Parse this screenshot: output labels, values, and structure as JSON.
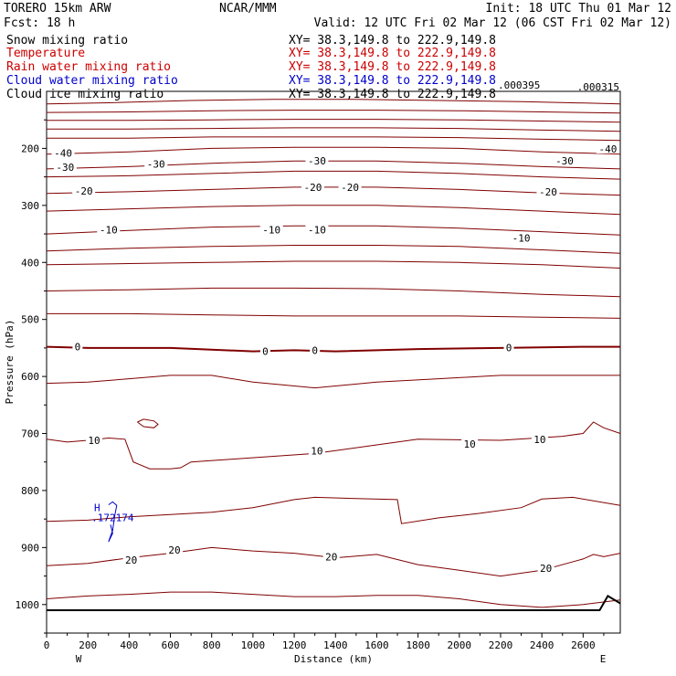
{
  "header": {
    "model": "TORERO  15km ARW",
    "center": "NCAR/MMM",
    "init": "Init: 18 UTC Thu 01 Mar 12",
    "fcst": "Fcst:   18 h",
    "valid": "Valid: 12 UTC Fri 02 Mar 12 (06 CST Fri 02 Mar 12)"
  },
  "fields": [
    {
      "name": "Snow mixing ratio",
      "xy": "",
      "color": "#000000"
    },
    {
      "name": "Temperature",
      "xy": "XY=  38.3,149.8 to 222.9,149.8",
      "color": "#cc0000"
    },
    {
      "name": "Rain water mixing ratio",
      "xy": "XY=  38.3,149.8 to 222.9,149.8",
      "color": "#cc0000"
    },
    {
      "name": "Cloud water mixing ratio",
      "xy": "XY=  38.3,149.8 to 222.9,149.8",
      "color": "#0000cc"
    },
    {
      "name": "Cloud ice mixing ratio",
      "xy": "XY=  38.3,149.8 to 222.9,149.8",
      "color": "#000000"
    }
  ],
  "snow_xy": "XY=  38.3,149.8 to 222.9,149.8",
  "corner_values": [
    ".000395",
    ".000315"
  ],
  "chart_data": {
    "type": "line",
    "subtype": "vertical cross-section contour",
    "xlabel": "Distance (km)",
    "ylabel": "Pressure (hPa)",
    "xlim": [
      0,
      2780
    ],
    "ylim": [
      1050,
      100
    ],
    "x_ticks": [
      0,
      200,
      400,
      600,
      800,
      1000,
      1200,
      1400,
      1600,
      1800,
      2000,
      2200,
      2400,
      2600
    ],
    "y_ticks": [
      200,
      300,
      400,
      500,
      600,
      700,
      800,
      900,
      1000
    ],
    "end_labels": {
      "left": "W",
      "right": "E"
    },
    "contour_color": "#800000",
    "series": [
      {
        "level": 40,
        "x": [
          0,
          300,
          700,
          1100,
          1500,
          1900,
          2300,
          2780
        ],
        "p": [
          122,
          120,
          116,
          114,
          114,
          116,
          118,
          122
        ]
      },
      {
        "level": 40,
        "x": [
          0,
          400,
          800,
          1200,
          1600,
          2000,
          2400,
          2780
        ],
        "p": [
          137,
          136,
          134,
          133,
          133,
          134,
          136,
          138
        ]
      },
      {
        "level": 40,
        "x": [
          0,
          400,
          800,
          1200,
          1600,
          2000,
          2400,
          2780
        ],
        "p": [
          151,
          151,
          150,
          149,
          149,
          150,
          152,
          154
        ]
      },
      {
        "level": 40,
        "x": [
          0,
          400,
          800,
          1200,
          1600,
          2000,
          2400,
          2780
        ],
        "p": [
          166,
          166,
          165,
          164,
          164,
          165,
          168,
          170
        ]
      },
      {
        "level": 40,
        "x": [
          0,
          400,
          800,
          1200,
          1600,
          2000,
          2400,
          2780
        ],
        "p": [
          182,
          182,
          180,
          180,
          180,
          181,
          184,
          186
        ]
      },
      {
        "level": -40,
        "x": [
          0,
          400,
          800,
          1200,
          1600,
          2000,
          2400,
          2780
        ],
        "p": [
          210,
          206,
          200,
          198,
          198,
          200,
          206,
          210
        ]
      },
      {
        "level": -30,
        "x": [
          0,
          400,
          800,
          1200,
          1600,
          2000,
          2400,
          2780
        ],
        "p": [
          236,
          232,
          226,
          222,
          222,
          226,
          232,
          236
        ]
      },
      {
        "level": -30,
        "x": [
          0,
          400,
          800,
          1200,
          1600,
          2000,
          2400,
          2780
        ],
        "p": [
          250,
          248,
          244,
          240,
          240,
          244,
          250,
          254
        ]
      },
      {
        "level": -20,
        "x": [
          0,
          400,
          800,
          1200,
          1600,
          2000,
          2400,
          2780
        ],
        "p": [
          279,
          276,
          272,
          268,
          268,
          272,
          278,
          282
        ]
      },
      {
        "level": -20,
        "x": [
          0,
          400,
          800,
          1200,
          1600,
          2000,
          2400,
          2780
        ],
        "p": [
          310,
          306,
          302,
          300,
          300,
          304,
          310,
          316
        ]
      },
      {
        "level": -10,
        "x": [
          0,
          400,
          800,
          1200,
          1600,
          2000,
          2400,
          2780
        ],
        "p": [
          350,
          344,
          338,
          336,
          336,
          340,
          346,
          352
        ]
      },
      {
        "level": -20,
        "x": [
          0,
          400,
          800,
          1200,
          1600,
          2000,
          2400,
          2780
        ],
        "p": [
          380,
          375,
          372,
          370,
          370,
          372,
          378,
          384
        ]
      },
      {
        "level": -10,
        "x": [
          0,
          400,
          800,
          1200,
          1600,
          2000,
          2400,
          2780
        ],
        "p": [
          404,
          402,
          400,
          398,
          398,
          400,
          404,
          410
        ]
      },
      {
        "level": -10,
        "x": [
          0,
          400,
          800,
          1200,
          1600,
          2000,
          2400,
          2780
        ],
        "p": [
          450,
          448,
          445,
          445,
          446,
          450,
          456,
          460
        ]
      },
      {
        "level": -10,
        "x": [
          0,
          400,
          800,
          1200,
          1600,
          2000,
          2400,
          2780
        ],
        "p": [
          490,
          490,
          492,
          494,
          494,
          494,
          496,
          498
        ]
      },
      {
        "level": 0,
        "x": [
          0,
          200,
          600,
          1000,
          1200,
          1400,
          1800,
          2200,
          2600,
          2780
        ],
        "p": [
          548,
          550,
          550,
          556,
          554,
          556,
          552,
          550,
          548,
          548
        ]
      },
      {
        "level": 10,
        "x": [
          0,
          200,
          400,
          600,
          800,
          1000,
          1300,
          1600,
          1900,
          2200,
          2500,
          2780
        ],
        "p": [
          612,
          610,
          604,
          598,
          598,
          610,
          620,
          610,
          604,
          598,
          598,
          598
        ]
      },
      {
        "level": 10,
        "x": [
          0,
          100,
          200,
          300,
          380,
          420,
          500,
          600,
          650,
          700,
          900,
          1300,
          1600,
          1800,
          2200,
          2500,
          2600,
          2650,
          2700,
          2780
        ],
        "p": [
          710,
          715,
          712,
          708,
          710,
          750,
          762,
          762,
          760,
          750,
          745,
          735,
          720,
          710,
          712,
          705,
          700,
          680,
          690,
          700
        ]
      },
      {
        "level": 10,
        "x": [
          440,
          470,
          520,
          540,
          520,
          470,
          440
        ],
        "p": [
          680,
          675,
          678,
          684,
          690,
          688,
          680
        ]
      },
      {
        "level": 20,
        "x": [
          0,
          200,
          400,
          600,
          800,
          1000,
          1200,
          1300,
          1500,
          1700,
          1720,
          1900,
          2100,
          2300,
          2400,
          2550,
          2780
        ],
        "p": [
          854,
          852,
          846,
          842,
          838,
          830,
          816,
          812,
          814,
          816,
          858,
          848,
          840,
          830,
          815,
          812,
          826
        ]
      },
      {
        "level": 20,
        "x": [
          0,
          200,
          400,
          600,
          800,
          1000,
          1200,
          1400,
          1600,
          1800,
          2000,
          2200,
          2400,
          2600,
          2650,
          2700,
          2780
        ],
        "p": [
          932,
          928,
          918,
          910,
          900,
          906,
          910,
          918,
          912,
          930,
          940,
          950,
          940,
          920,
          912,
          916,
          910
        ]
      },
      {
        "level": 20,
        "x": [
          0,
          200,
          400,
          600,
          800,
          1000,
          1200,
          1400,
          1600,
          1800,
          2000,
          2200,
          2400,
          2600,
          2780
        ],
        "p": [
          990,
          985,
          982,
          978,
          978,
          982,
          986,
          986,
          984,
          984,
          990,
          1000,
          1005,
          1000,
          992
        ]
      }
    ],
    "terrain": {
      "x": [
        0,
        2500,
        2680,
        2720,
        2780
      ],
      "p": [
        1010,
        1010,
        1010,
        985,
        998
      ]
    },
    "contour_labels": [
      {
        "text": "-40",
        "x": 80,
        "p": 208,
        "color": "#000000"
      },
      {
        "text": "-40",
        "x": 2720,
        "p": 201,
        "color": "#000000"
      },
      {
        "text": "-30",
        "x": 90,
        "p": 233,
        "color": "#000000"
      },
      {
        "text": "-30",
        "x": 530,
        "p": 227,
        "color": "#000000"
      },
      {
        "text": "-30",
        "x": 1310,
        "p": 222,
        "color": "#000000"
      },
      {
        "text": "-30",
        "x": 2510,
        "p": 222,
        "color": "#000000"
      },
      {
        "text": "-20",
        "x": 180,
        "p": 275,
        "color": "#000000"
      },
      {
        "text": "-20",
        "x": 1290,
        "p": 268,
        "color": "#000000"
      },
      {
        "text": "-20",
        "x": 1470,
        "p": 268,
        "color": "#000000"
      },
      {
        "text": "-20",
        "x": 2430,
        "p": 276,
        "color": "#000000"
      },
      {
        "text": "-10",
        "x": 300,
        "p": 343,
        "color": "#000000"
      },
      {
        "text": "-10",
        "x": 1090,
        "p": 343,
        "color": "#000000"
      },
      {
        "text": "-10",
        "x": 1310,
        "p": 343,
        "color": "#000000"
      },
      {
        "text": "-10",
        "x": 2300,
        "p": 357,
        "color": "#000000"
      },
      {
        "text": "0",
        "x": 150,
        "p": 548,
        "color": "#000000"
      },
      {
        "text": "0",
        "x": 1060,
        "p": 556,
        "color": "#000000"
      },
      {
        "text": "0",
        "x": 1300,
        "p": 554,
        "color": "#000000"
      },
      {
        "text": "0",
        "x": 2240,
        "p": 549,
        "color": "#000000"
      },
      {
        "text": "10",
        "x": 230,
        "p": 712,
        "color": "#000000"
      },
      {
        "text": "10",
        "x": 1310,
        "p": 730,
        "color": "#000000"
      },
      {
        "text": "10",
        "x": 2050,
        "p": 718,
        "color": "#000000"
      },
      {
        "text": "10",
        "x": 2390,
        "p": 710,
        "color": "#000000"
      },
      {
        "text": "20",
        "x": 620,
        "p": 904,
        "color": "#000000"
      },
      {
        "text": "20",
        "x": 1380,
        "p": 916,
        "color": "#000000"
      },
      {
        "text": "20",
        "x": 410,
        "p": 922,
        "color": "#000000"
      },
      {
        "text": "20",
        "x": 2420,
        "p": 936,
        "color": "#000000"
      }
    ],
    "markers": [
      {
        "text": "H",
        "x": 245,
        "p": 836,
        "color": "#0000cc"
      },
      {
        "text": ".172174",
        "x": 320,
        "p": 854,
        "color": "#0000cc"
      }
    ],
    "cloud_contour": {
      "x": [
        300,
        320,
        340,
        330,
        320,
        310,
        300,
        320,
        310
      ],
      "p": [
        825,
        820,
        826,
        845,
        870,
        880,
        890,
        875,
        860
      ],
      "color": "#0000cc"
    }
  }
}
